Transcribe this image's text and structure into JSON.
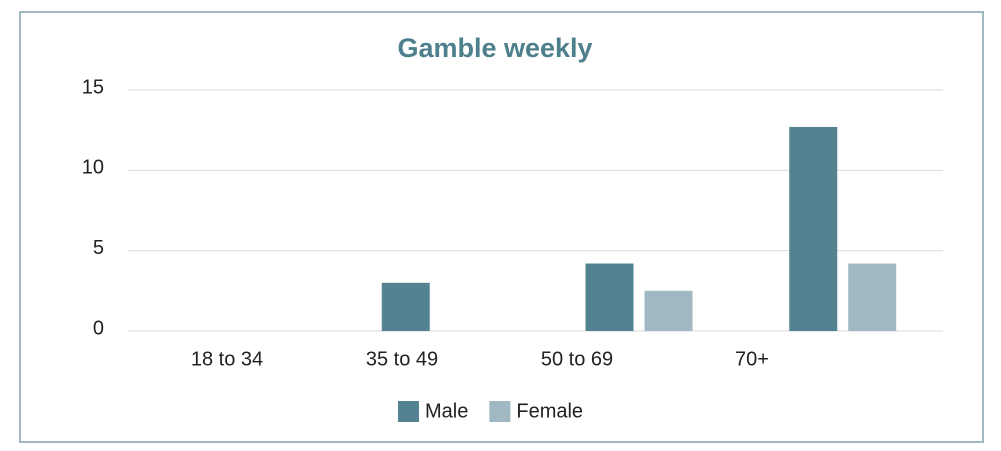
{
  "chart_data": {
    "type": "bar",
    "title": "Gamble weekly",
    "categories": [
      "18 to 34",
      "35 to 49",
      "50 to 69",
      "70+"
    ],
    "series": [
      {
        "name": "Male",
        "color": "#538391",
        "values": [
          0,
          3,
          4.2,
          12.7
        ]
      },
      {
        "name": "Female",
        "color": "#a0b8c1",
        "values": [
          0,
          0,
          2.5,
          4.2
        ]
      }
    ],
    "ylim": [
      0,
      15
    ],
    "yticks": [
      0,
      5,
      10,
      15
    ],
    "grid": true,
    "legend": "bottom"
  }
}
